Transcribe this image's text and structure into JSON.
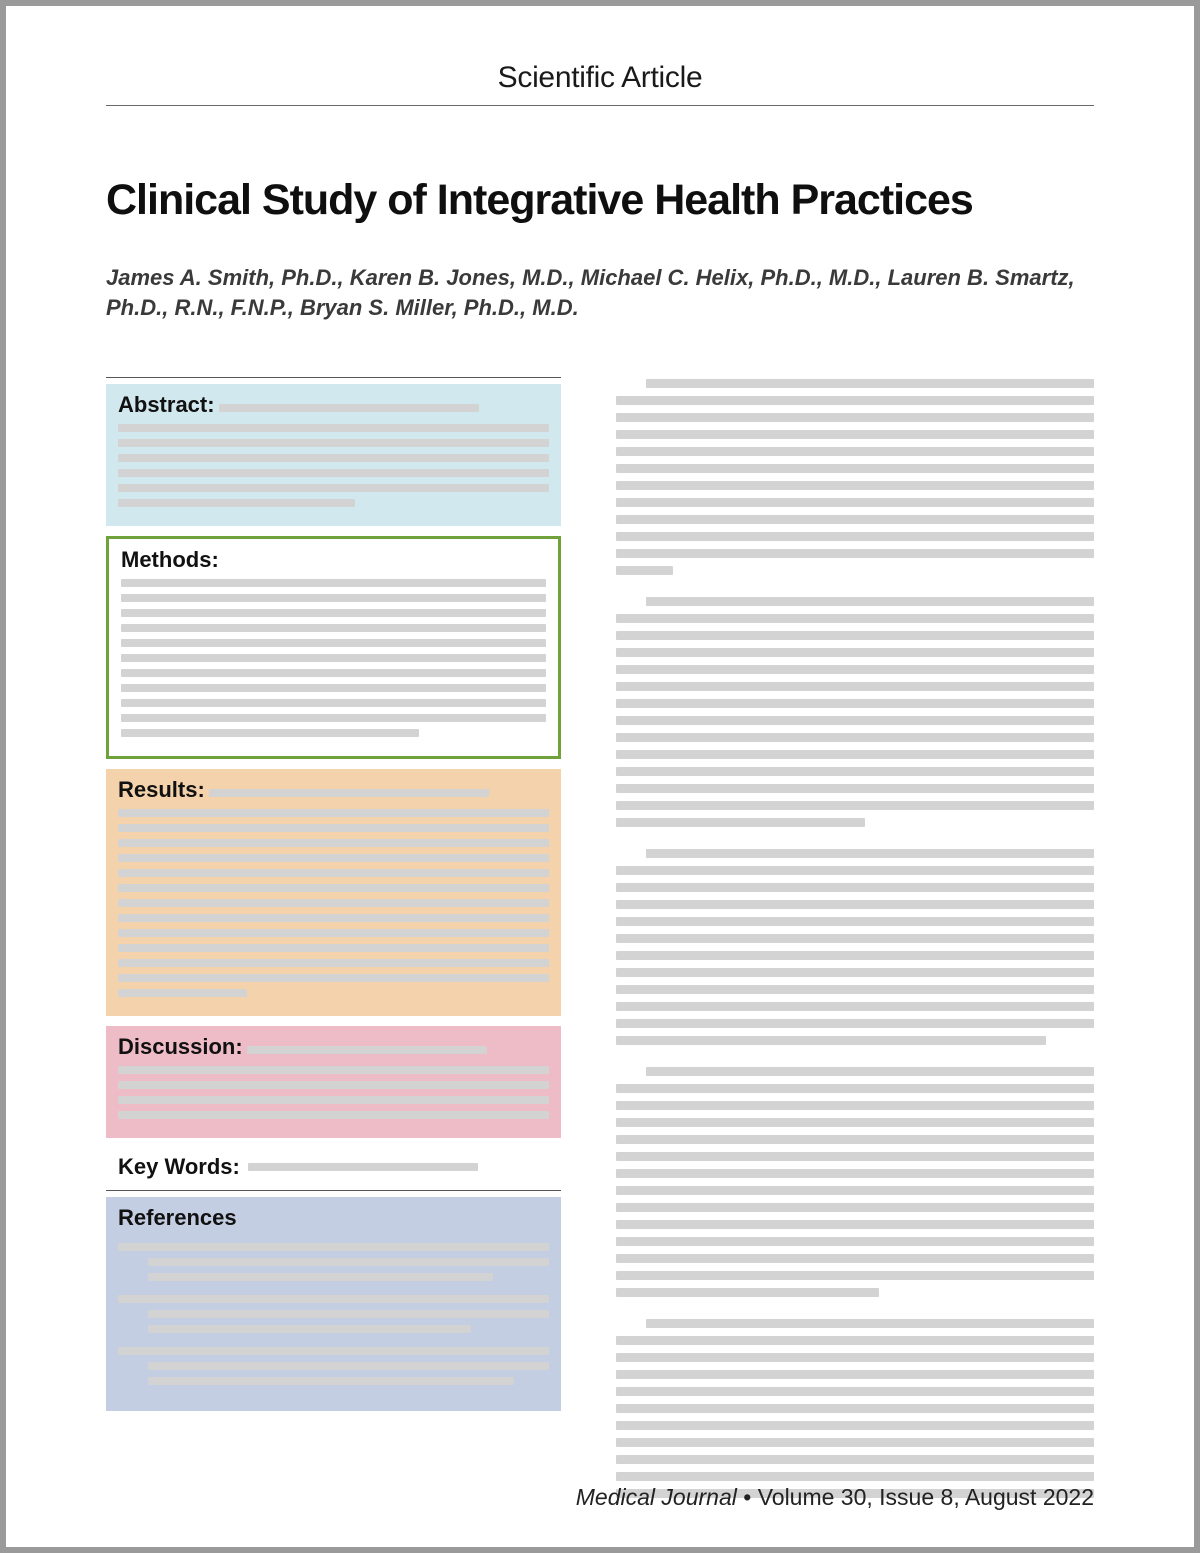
{
  "header_label": "Scientific Article",
  "title": "Clinical Study of Integrative Health Practices",
  "authors": "James A. Smith, Ph.D., Karen B. Jones, M.D., Michael C. Helix, Ph.D., M.D., Lauren B. Smartz, Ph.D., R.N., F.N.P., Bryan S. Miller, Ph.D., M.D.",
  "sections": {
    "abstract": {
      "heading": "Abstract:",
      "bg": "#d2e8ef",
      "lines": 7,
      "last_width_pct": 55
    },
    "methods": {
      "heading": "Methods:",
      "border": "#6fa23a",
      "lines": 12,
      "last_width_pct": 70
    },
    "results": {
      "heading": "Results:",
      "bg": "#f4d2ac",
      "lines": 14,
      "last_width_pct": 30
    },
    "discussion": {
      "heading": "Discussion:",
      "bg": "#edbcc7",
      "lines": 5,
      "last_width_pct": 100
    },
    "keywords": {
      "heading": "Key Words:",
      "line_width_pct": 60
    },
    "references": {
      "heading": "References",
      "bg": "#c3cee2",
      "entries": 3
    }
  },
  "right_column": {
    "paragraphs": [
      {
        "lines": 12,
        "last_width_pct": 12
      },
      {
        "lines": 14,
        "last_width_pct": 52
      },
      {
        "lines": 12,
        "last_width_pct": 90
      },
      {
        "lines": 14,
        "last_width_pct": 55
      },
      {
        "lines": 11,
        "last_width_pct": 100
      }
    ],
    "placeholder_color": "#d6d6d6"
  },
  "footer": {
    "journal": "Medical Journal",
    "separator": " • ",
    "issue": "Volume 30, Issue 8, August 2022"
  },
  "colors": {
    "page_bg": "#ffffff",
    "outer_bg": "#9a9a9a",
    "text": "#1a1a1a",
    "placeholder": "#d3d3d3",
    "rule": "#6a6a6a"
  }
}
